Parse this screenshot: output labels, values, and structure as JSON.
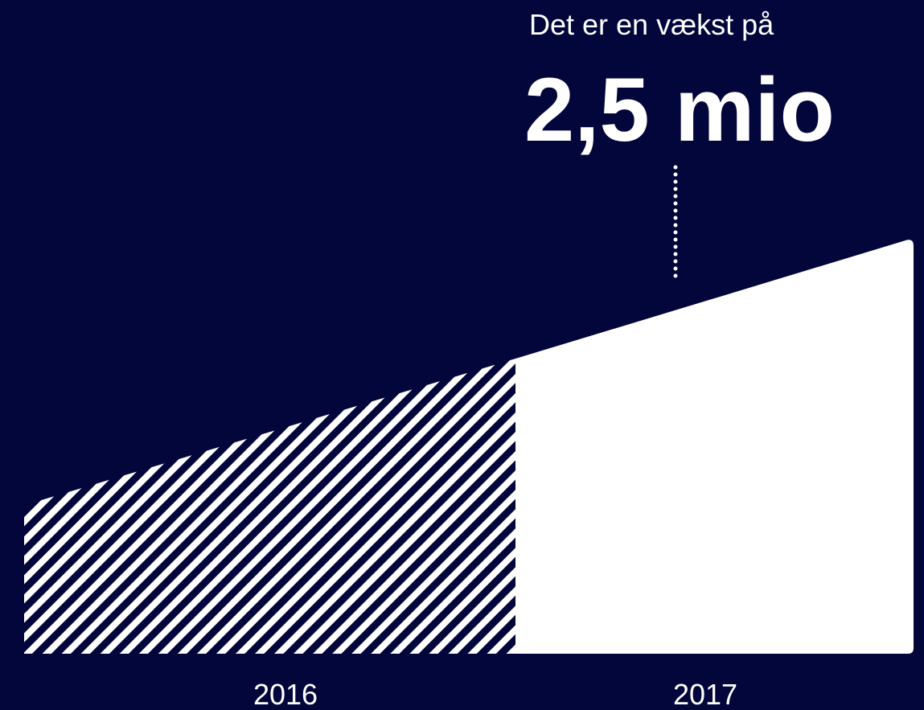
{
  "annotation": {
    "intro": "Det er en vækst på",
    "value": "2,5 mio"
  },
  "labels": [
    "2016",
    "2017"
  ]
}
